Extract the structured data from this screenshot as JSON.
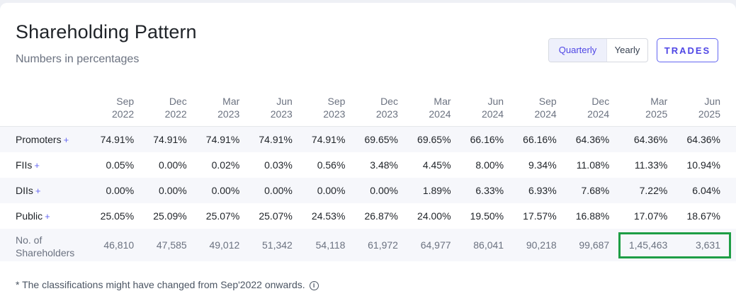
{
  "header": {
    "title": "Shareholding Pattern",
    "subtitle": "Numbers in percentages"
  },
  "toggle": {
    "options": [
      "Quarterly",
      "Yearly"
    ],
    "selected": "Quarterly"
  },
  "trades_label": "TRADES",
  "table": {
    "columns": [
      {
        "month": "Sep",
        "year": "2022"
      },
      {
        "month": "Dec",
        "year": "2022"
      },
      {
        "month": "Mar",
        "year": "2023"
      },
      {
        "month": "Jun",
        "year": "2023"
      },
      {
        "month": "Sep",
        "year": "2023"
      },
      {
        "month": "Dec",
        "year": "2023"
      },
      {
        "month": "Mar",
        "year": "2024"
      },
      {
        "month": "Jun",
        "year": "2024"
      },
      {
        "month": "Sep",
        "year": "2024"
      },
      {
        "month": "Dec",
        "year": "2024"
      },
      {
        "month": "Mar",
        "year": "2025"
      },
      {
        "month": "Jun",
        "year": "2025"
      }
    ],
    "rows": [
      {
        "label": "Promoters",
        "expand": "+",
        "values": [
          "74.91%",
          "74.91%",
          "74.91%",
          "74.91%",
          "74.91%",
          "69.65%",
          "69.65%",
          "66.16%",
          "66.16%",
          "64.36%",
          "64.36%",
          "64.36%"
        ]
      },
      {
        "label": "FIIs",
        "expand": "+",
        "values": [
          "0.05%",
          "0.00%",
          "0.02%",
          "0.03%",
          "0.56%",
          "3.48%",
          "4.45%",
          "8.00%",
          "9.34%",
          "11.08%",
          "11.33%",
          "10.94%"
        ]
      },
      {
        "label": "DIIs",
        "expand": "+",
        "values": [
          "0.00%",
          "0.00%",
          "0.00%",
          "0.00%",
          "0.00%",
          "0.00%",
          "1.89%",
          "6.33%",
          "6.93%",
          "7.68%",
          "7.22%",
          "6.04%"
        ]
      },
      {
        "label": "Public",
        "expand": "+",
        "values": [
          "25.05%",
          "25.09%",
          "25.07%",
          "25.07%",
          "24.53%",
          "26.87%",
          "24.00%",
          "19.50%",
          "17.57%",
          "16.88%",
          "17.07%",
          "18.67%"
        ]
      }
    ],
    "shareholders": {
      "label_line1": "No. of",
      "label_line2": "Shareholders",
      "values": [
        "46,810",
        "47,585",
        "49,012",
        "51,342",
        "54,118",
        "61,972",
        "64,977",
        "86,041",
        "90,218",
        "99,687",
        "1,45,463",
        "3,631"
      ]
    }
  },
  "footnote": "* The classifications might have changed from Sep'2022 onwards.",
  "colors": {
    "accent": "#4f46e5",
    "highlight_box": "#1e9e45",
    "stripe": "#f6f7fb"
  },
  "icons": {
    "footnote_icon": "info-icon"
  }
}
